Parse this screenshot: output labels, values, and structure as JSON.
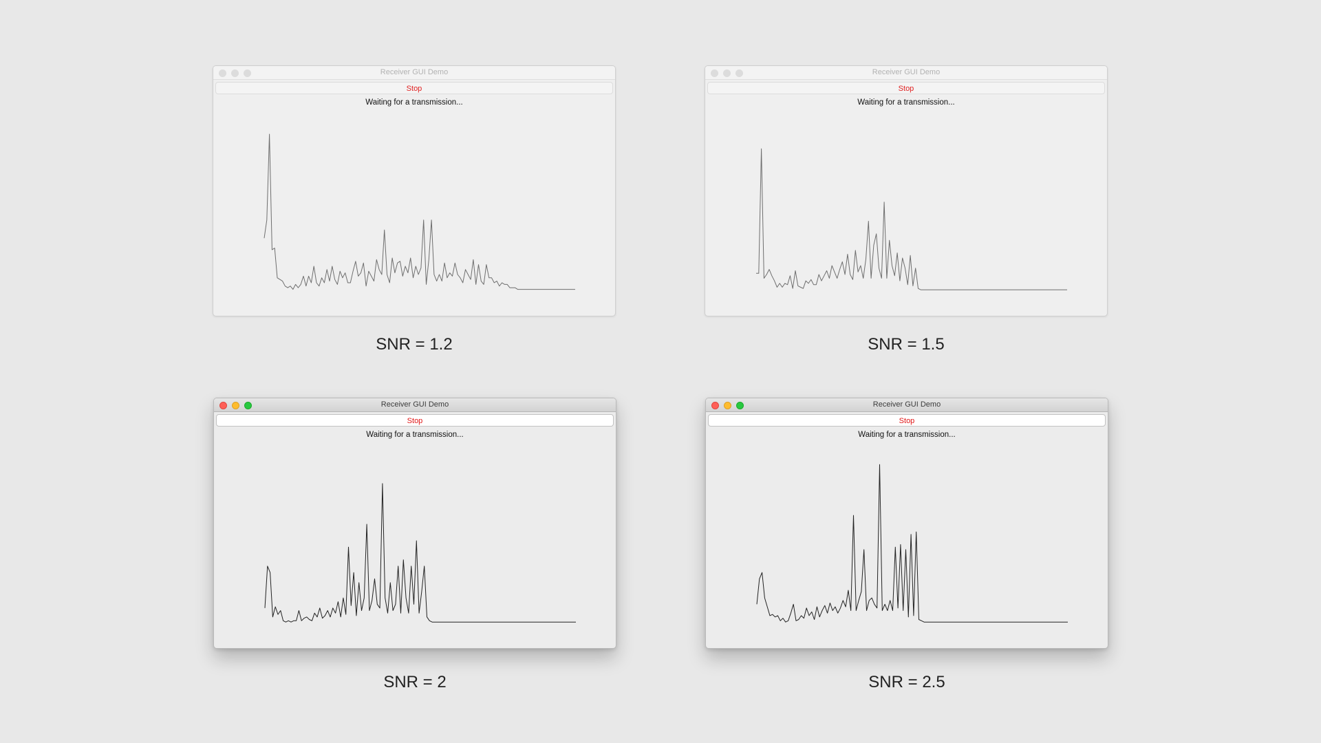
{
  "windows": [
    {
      "title": "Receiver GUI Demo",
      "state": "inactive",
      "button_label": "Stop",
      "status": "Waiting for a transmission...",
      "caption": "SNR = 1.2",
      "chart_data": {
        "type": "line",
        "x": [
          0,
          1,
          2,
          3,
          4,
          5,
          6,
          7,
          8,
          9,
          10,
          11,
          12,
          13,
          14,
          15,
          16,
          17,
          18,
          19,
          20,
          21,
          22,
          23,
          24,
          25,
          26,
          27,
          28,
          29,
          30,
          31,
          32,
          33,
          34,
          35,
          36,
          37,
          38,
          39,
          40,
          41,
          42,
          43,
          44,
          45,
          46,
          47,
          48,
          49,
          50,
          51,
          52,
          53,
          54,
          55,
          56,
          57,
          58,
          59,
          60,
          61,
          62,
          63,
          64,
          65,
          66,
          67,
          68,
          69,
          70,
          71,
          72,
          73,
          74,
          75,
          76,
          77,
          78,
          79,
          80,
          81,
          82,
          83,
          84,
          85,
          86,
          87,
          88,
          89,
          90,
          91,
          92,
          93,
          94,
          95,
          96,
          97,
          98,
          99,
          100,
          101,
          102,
          103,
          104,
          105,
          106,
          107,
          108,
          109,
          110,
          111,
          112,
          113,
          114,
          115,
          116,
          117,
          118,
          119
        ],
        "values": [
          0.32,
          0.43,
          0.95,
          0.25,
          0.26,
          0.08,
          0.07,
          0.06,
          0.03,
          0.02,
          0.03,
          0.01,
          0.04,
          0.02,
          0.04,
          0.09,
          0.03,
          0.09,
          0.05,
          0.15,
          0.05,
          0.03,
          0.08,
          0.05,
          0.13,
          0.06,
          0.15,
          0.07,
          0.04,
          0.12,
          0.08,
          0.11,
          0.05,
          0.05,
          0.12,
          0.18,
          0.09,
          0.11,
          0.17,
          0.03,
          0.12,
          0.09,
          0.06,
          0.19,
          0.13,
          0.1,
          0.37,
          0.1,
          0.05,
          0.2,
          0.11,
          0.17,
          0.18,
          0.09,
          0.15,
          0.11,
          0.2,
          0.08,
          0.15,
          0.1,
          0.14,
          0.43,
          0.04,
          0.19,
          0.43,
          0.1,
          0.06,
          0.1,
          0.06,
          0.17,
          0.08,
          0.11,
          0.09,
          0.17,
          0.1,
          0.08,
          0.05,
          0.13,
          0.1,
          0.07,
          0.19,
          0.04,
          0.16,
          0.06,
          0.04,
          0.16,
          0.08,
          0.08,
          0.05,
          0.06,
          0.03,
          0.05,
          0.04,
          0.04,
          0.02,
          0.02,
          0.02,
          0.01,
          0.01,
          0.01,
          0.01,
          0.01,
          0.01,
          0.01,
          0.01,
          0.01,
          0.01,
          0.01,
          0.01,
          0.01,
          0.01,
          0.01,
          0.01,
          0.01,
          0.01,
          0.01,
          0.01,
          0.01,
          0.01,
          0.01
        ],
        "ylim": [
          0,
          1
        ],
        "grid": false
      }
    },
    {
      "title": "Receiver GUI Demo",
      "state": "inactive",
      "button_label": "Stop",
      "status": "Waiting for a transmission...",
      "caption": "SNR = 1.5",
      "chart_data": {
        "type": "line",
        "x": [
          0,
          1,
          2,
          3,
          4,
          5,
          6,
          7,
          8,
          9,
          10,
          11,
          12,
          13,
          14,
          15,
          16,
          17,
          18,
          19,
          20,
          21,
          22,
          23,
          24,
          25,
          26,
          27,
          28,
          29,
          30,
          31,
          32,
          33,
          34,
          35,
          36,
          37,
          38,
          39,
          40,
          41,
          42,
          43,
          44,
          45,
          46,
          47,
          48,
          49,
          50,
          51,
          52,
          53,
          54,
          55,
          56,
          57,
          58,
          59,
          60,
          61,
          62,
          63,
          64,
          65,
          66,
          67,
          68,
          69,
          70,
          71,
          72,
          73,
          74,
          75,
          76,
          77,
          78,
          79,
          80,
          81,
          82,
          83,
          84,
          85,
          86,
          87,
          88,
          89,
          90,
          91,
          92,
          93,
          94,
          95,
          96,
          97,
          98,
          99,
          100,
          101,
          102,
          103,
          104,
          105,
          106,
          107,
          108,
          109,
          110,
          111,
          112,
          113,
          114,
          115,
          116,
          117,
          118,
          119
        ],
        "values": [
          0.14,
          0.14,
          1.12,
          0.1,
          0.13,
          0.17,
          0.12,
          0.08,
          0.03,
          0.06,
          0.03,
          0.06,
          0.05,
          0.12,
          0.02,
          0.16,
          0.04,
          0.03,
          0.02,
          0.08,
          0.06,
          0.09,
          0.05,
          0.05,
          0.13,
          0.08,
          0.12,
          0.16,
          0.1,
          0.2,
          0.15,
          0.1,
          0.17,
          0.23,
          0.13,
          0.29,
          0.13,
          0.09,
          0.32,
          0.15,
          0.2,
          0.1,
          0.25,
          0.55,
          0.1,
          0.36,
          0.45,
          0.18,
          0.1,
          0.7,
          0.1,
          0.4,
          0.2,
          0.12,
          0.3,
          0.08,
          0.26,
          0.18,
          0.05,
          0.28,
          0.04,
          0.18,
          0.02,
          0.01,
          0.01,
          0.01,
          0.01,
          0.01,
          0.01,
          0.01,
          0.01,
          0.01,
          0.01,
          0.01,
          0.01,
          0.01,
          0.01,
          0.01,
          0.01,
          0.01,
          0.01,
          0.01,
          0.01,
          0.01,
          0.01,
          0.01,
          0.01,
          0.01,
          0.01,
          0.01,
          0.01,
          0.01,
          0.01,
          0.01,
          0.01,
          0.01,
          0.01,
          0.01,
          0.01,
          0.01,
          0.01,
          0.01,
          0.01,
          0.01,
          0.01,
          0.01,
          0.01,
          0.01,
          0.01,
          0.01,
          0.01,
          0.01,
          0.01,
          0.01,
          0.01,
          0.01,
          0.01,
          0.01,
          0.01,
          0.01
        ],
        "ylim": [
          0,
          1.3
        ],
        "grid": false
      }
    },
    {
      "title": "Receiver GUI Demo",
      "state": "active",
      "button_label": "Stop",
      "status": "Waiting for a transmission...",
      "caption": "SNR = 2",
      "chart_data": {
        "type": "line",
        "x": [
          0,
          1,
          2,
          3,
          4,
          5,
          6,
          7,
          8,
          9,
          10,
          11,
          12,
          13,
          14,
          15,
          16,
          17,
          18,
          19,
          20,
          21,
          22,
          23,
          24,
          25,
          26,
          27,
          28,
          29,
          30,
          31,
          32,
          33,
          34,
          35,
          36,
          37,
          38,
          39,
          40,
          41,
          42,
          43,
          44,
          45,
          46,
          47,
          48,
          49,
          50,
          51,
          52,
          53,
          54,
          55,
          56,
          57,
          58,
          59,
          60,
          61,
          62,
          63,
          64,
          65,
          66,
          67,
          68,
          69,
          70,
          71,
          72,
          73,
          74,
          75,
          76,
          77,
          78,
          79,
          80,
          81,
          82,
          83,
          84,
          85,
          86,
          87,
          88,
          89,
          90,
          91,
          92,
          93,
          94,
          95,
          96,
          97,
          98,
          99,
          100,
          101,
          102,
          103,
          104,
          105,
          106,
          107,
          108,
          109,
          110,
          111,
          112,
          113,
          114,
          115,
          116,
          117,
          118,
          119
        ],
        "values": [
          0.12,
          0.45,
          0.4,
          0.05,
          0.13,
          0.07,
          0.1,
          0.02,
          0.01,
          0.02,
          0.01,
          0.02,
          0.02,
          0.1,
          0.02,
          0.04,
          0.05,
          0.03,
          0.02,
          0.08,
          0.05,
          0.12,
          0.04,
          0.06,
          0.1,
          0.05,
          0.12,
          0.08,
          0.17,
          0.05,
          0.2,
          0.07,
          0.6,
          0.14,
          0.4,
          0.06,
          0.32,
          0.1,
          0.2,
          0.78,
          0.1,
          0.18,
          0.35,
          0.15,
          0.12,
          1.1,
          0.2,
          0.08,
          0.32,
          0.1,
          0.15,
          0.45,
          0.08,
          0.5,
          0.2,
          0.08,
          0.45,
          0.15,
          0.65,
          0.08,
          0.25,
          0.45,
          0.05,
          0.02,
          0.01,
          0.01,
          0.01,
          0.01,
          0.01,
          0.01,
          0.01,
          0.01,
          0.01,
          0.01,
          0.01,
          0.01,
          0.01,
          0.01,
          0.01,
          0.01,
          0.01,
          0.01,
          0.01,
          0.01,
          0.01,
          0.01,
          0.01,
          0.01,
          0.01,
          0.01,
          0.01,
          0.01,
          0.01,
          0.01,
          0.01,
          0.01,
          0.01,
          0.01,
          0.01,
          0.01,
          0.01,
          0.01,
          0.01,
          0.01,
          0.01,
          0.01,
          0.01,
          0.01,
          0.01,
          0.01,
          0.01,
          0.01,
          0.01,
          0.01,
          0.01,
          0.01,
          0.01,
          0.01,
          0.01,
          0.01
        ],
        "ylim": [
          0,
          1.3
        ],
        "grid": false
      }
    },
    {
      "title": "Receiver GUI Demo",
      "state": "active",
      "button_label": "Stop",
      "status": "Waiting for a transmission...",
      "caption": "SNR = 2.5",
      "chart_data": {
        "type": "line",
        "x": [
          0,
          1,
          2,
          3,
          4,
          5,
          6,
          7,
          8,
          9,
          10,
          11,
          12,
          13,
          14,
          15,
          16,
          17,
          18,
          19,
          20,
          21,
          22,
          23,
          24,
          25,
          26,
          27,
          28,
          29,
          30,
          31,
          32,
          33,
          34,
          35,
          36,
          37,
          38,
          39,
          40,
          41,
          42,
          43,
          44,
          45,
          46,
          47,
          48,
          49,
          50,
          51,
          52,
          53,
          54,
          55,
          56,
          57,
          58,
          59,
          60,
          61,
          62,
          63,
          64,
          65,
          66,
          67,
          68,
          69,
          70,
          71,
          72,
          73,
          74,
          75,
          76,
          77,
          78,
          79,
          80,
          81,
          82,
          83,
          84,
          85,
          86,
          87,
          88,
          89,
          90,
          91,
          92,
          93,
          94,
          95,
          96,
          97,
          98,
          99,
          100,
          101,
          102,
          103,
          104,
          105,
          106,
          107,
          108,
          109,
          110,
          111,
          112,
          113,
          114,
          115,
          116,
          117,
          118,
          119
        ],
        "values": [
          0.15,
          0.35,
          0.4,
          0.2,
          0.13,
          0.06,
          0.07,
          0.05,
          0.06,
          0.02,
          0.04,
          0.01,
          0.02,
          0.08,
          0.15,
          0.02,
          0.03,
          0.06,
          0.04,
          0.12,
          0.06,
          0.09,
          0.03,
          0.13,
          0.05,
          0.1,
          0.14,
          0.08,
          0.16,
          0.1,
          0.13,
          0.08,
          0.12,
          0.18,
          0.13,
          0.26,
          0.1,
          0.85,
          0.1,
          0.18,
          0.25,
          0.58,
          0.1,
          0.18,
          0.2,
          0.15,
          0.12,
          1.25,
          0.1,
          0.15,
          0.1,
          0.18,
          0.1,
          0.6,
          0.12,
          0.62,
          0.1,
          0.58,
          0.05,
          0.7,
          0.06,
          0.72,
          0.03,
          0.02,
          0.01,
          0.01,
          0.01,
          0.01,
          0.01,
          0.01,
          0.01,
          0.01,
          0.01,
          0.01,
          0.01,
          0.01,
          0.01,
          0.01,
          0.01,
          0.01,
          0.01,
          0.01,
          0.01,
          0.01,
          0.01,
          0.01,
          0.01,
          0.01,
          0.01,
          0.01,
          0.01,
          0.01,
          0.01,
          0.01,
          0.01,
          0.01,
          0.01,
          0.01,
          0.01,
          0.01,
          0.01,
          0.01,
          0.01,
          0.01,
          0.01,
          0.01,
          0.01,
          0.01,
          0.01,
          0.01,
          0.01,
          0.01,
          0.01,
          0.01,
          0.01,
          0.01,
          0.01,
          0.01,
          0.01,
          0.01
        ],
        "ylim": [
          0,
          1.3
        ],
        "grid": false
      }
    }
  ],
  "colors": {
    "background": "#e8e8e8",
    "stop_text": "#e02020",
    "line_inactive": "#6e6e6e",
    "line_active": "#222222"
  }
}
